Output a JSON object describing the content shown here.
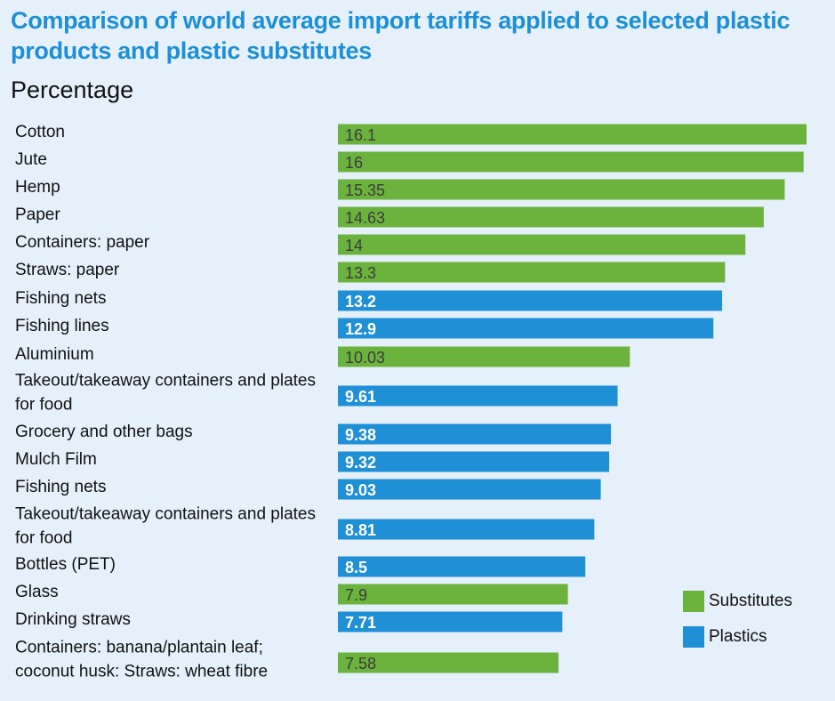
{
  "title": "Comparison of world average import tariffs applied to selected plastic products and plastic substitutes",
  "subtitle": "Percentage",
  "colors": {
    "background": "#e5f0fa",
    "title": "#1d8fd6",
    "substitutes": "#6cb33e",
    "plastics": "#1f8fd6"
  },
  "legend": [
    {
      "label": "Substitutes",
      "color": "#6cb33e"
    },
    {
      "label": "Plastics",
      "color": "#1f8fd6"
    }
  ],
  "chart_data": {
    "type": "bar",
    "orientation": "horizontal",
    "grid": false,
    "legend_position": "bottom-right",
    "categories": [
      [
        "Cotton"
      ],
      [
        "Jute"
      ],
      [
        "Hemp"
      ],
      [
        "Paper"
      ],
      [
        "Containers: paper"
      ],
      [
        "Straws: paper"
      ],
      [
        "Fishing nets"
      ],
      [
        "Fishing lines"
      ],
      [
        "Aluminium"
      ],
      [
        "Takeout/takeaway containers and plates",
        "for food"
      ],
      [
        "Grocery and other bags"
      ],
      [
        "Mulch Film"
      ],
      [
        "Fishing nets"
      ],
      [
        "Takeout/takeaway containers and plates",
        "for food"
      ],
      [
        "Bottles (PET)"
      ],
      [
        "Glass"
      ],
      [
        "Drinking straws"
      ],
      [
        "Containers: banana/plantain leaf;",
        "coconut husk: Straws: wheat fibre"
      ]
    ],
    "values": [
      16.1,
      16,
      15.35,
      14.63,
      14,
      13.3,
      13.2,
      12.9,
      10.03,
      9.61,
      9.38,
      9.32,
      9.03,
      8.81,
      8.5,
      7.9,
      7.71,
      7.58
    ],
    "value_labels": [
      "16.1",
      "16",
      "15.35",
      "14.63",
      "14",
      "13.3",
      "13.2",
      "12.9",
      "10.03",
      "9.61",
      "9.38",
      "9.32",
      "9.03",
      "8.81",
      "8.5",
      "7.9",
      "7.71",
      "7.58"
    ],
    "groups": [
      "Substitutes",
      "Substitutes",
      "Substitutes",
      "Substitutes",
      "Substitutes",
      "Substitutes",
      "Plastics",
      "Plastics",
      "Substitutes",
      "Plastics",
      "Plastics",
      "Plastics",
      "Plastics",
      "Plastics",
      "Plastics",
      "Substitutes",
      "Plastics",
      "Substitutes"
    ],
    "xlim": [
      0,
      16.1
    ]
  }
}
